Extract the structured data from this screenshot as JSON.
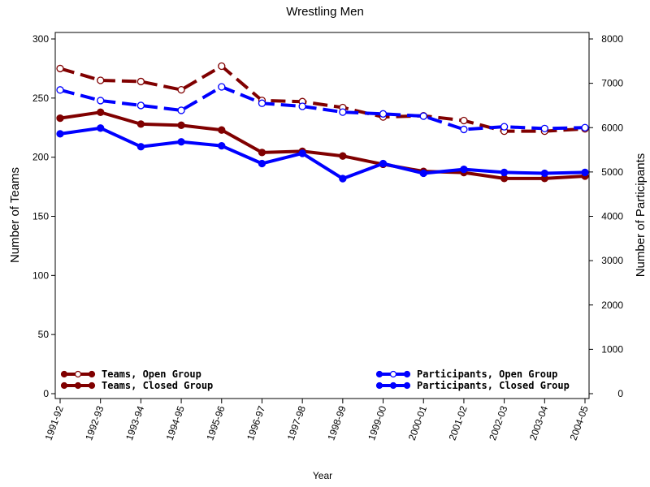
{
  "chart_data": {
    "type": "line",
    "title": "Wrestling Men",
    "xlabel": "Year",
    "ylabel": "Number of Teams",
    "y2label": "Number of Participants",
    "categories": [
      "1991-92",
      "1992-93",
      "1993-94",
      "1994-95",
      "1995-96",
      "1996-97",
      "1997-98",
      "1998-99",
      "1999-00",
      "2000-01",
      "2001-02",
      "2002-03",
      "2003-04",
      "2004-05"
    ],
    "ylim": [
      0,
      300
    ],
    "yticks": [
      0,
      50,
      100,
      150,
      200,
      250,
      300
    ],
    "y2lim": [
      0,
      8000
    ],
    "y2ticks": [
      0,
      1000,
      2000,
      3000,
      4000,
      5000,
      6000,
      7000,
      8000
    ],
    "grid": false,
    "series": [
      {
        "name": "Teams, Open Group",
        "axis": "left",
        "color": "#800000",
        "style": "dashed",
        "marker": "open-circle",
        "values": [
          275,
          265,
          264,
          257,
          277,
          248,
          247,
          242,
          234,
          235,
          231,
          222,
          222,
          224
        ]
      },
      {
        "name": "Teams, Closed Group",
        "axis": "left",
        "color": "#800000",
        "style": "solid",
        "marker": "filled-circle",
        "values": [
          233,
          238,
          228,
          227,
          223,
          204,
          205,
          201,
          194,
          188,
          187,
          182,
          182,
          184
        ]
      },
      {
        "name": "Participants, Open Group",
        "axis": "right",
        "color": "#0000ff",
        "style": "dashed",
        "marker": "open-circle",
        "values": [
          6850,
          6610,
          6500,
          6390,
          6920,
          6550,
          6480,
          6350,
          6310,
          6260,
          5960,
          6020,
          5980,
          6000
        ]
      },
      {
        "name": "Participants, Closed Group",
        "axis": "right",
        "color": "#0000ff",
        "style": "solid",
        "marker": "filled-circle",
        "values": [
          5860,
          5990,
          5570,
          5680,
          5590,
          5190,
          5420,
          4850,
          5190,
          4970,
          5060,
          4990,
          4970,
          4990
        ]
      }
    ],
    "legend": [
      {
        "label": "Teams, Open Group",
        "position": "bottom-left"
      },
      {
        "label": "Teams, Closed Group",
        "position": "bottom-left"
      },
      {
        "label": "Participants, Open Group",
        "position": "bottom-right"
      },
      {
        "label": "Participants, Closed Group",
        "position": "bottom-right"
      }
    ]
  }
}
